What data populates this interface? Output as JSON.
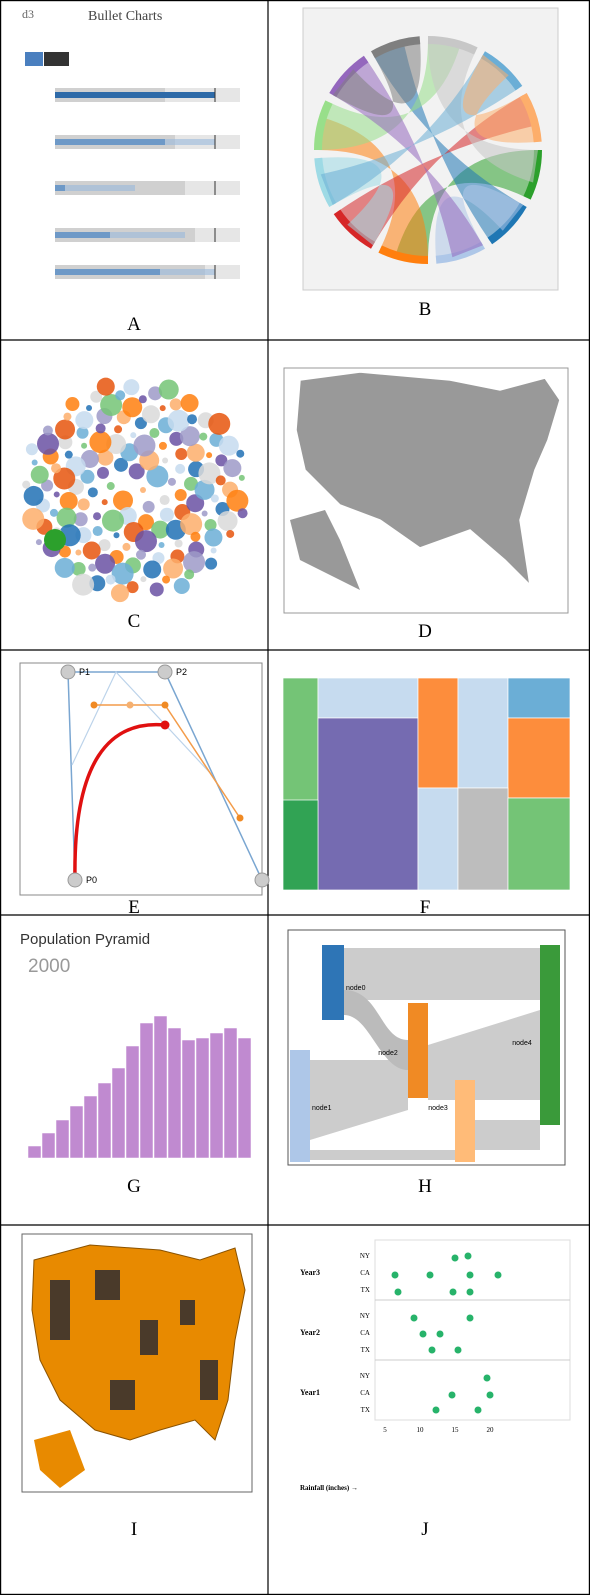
{
  "cells": [
    {
      "label": "A",
      "title": "Bullet Charts"
    },
    {
      "label": "B"
    },
    {
      "label": "C"
    },
    {
      "label": "D"
    },
    {
      "label": "E",
      "points": [
        "P0",
        "P1",
        "P2"
      ]
    },
    {
      "label": "F"
    },
    {
      "label": "G",
      "title": "Population Pyramid",
      "year": "2000"
    },
    {
      "label": "H",
      "nodes": [
        "node0",
        "node1",
        "node2",
        "node3",
        "node4"
      ]
    },
    {
      "label": "I"
    },
    {
      "label": "J",
      "groups": [
        "Year3",
        "Year2",
        "Year1"
      ],
      "states": [
        "NY",
        "CA",
        "TX"
      ],
      "xticks": [
        "5",
        "10",
        "15",
        "20"
      ],
      "x_label": "Rainfall (inches) →"
    }
  ]
}
